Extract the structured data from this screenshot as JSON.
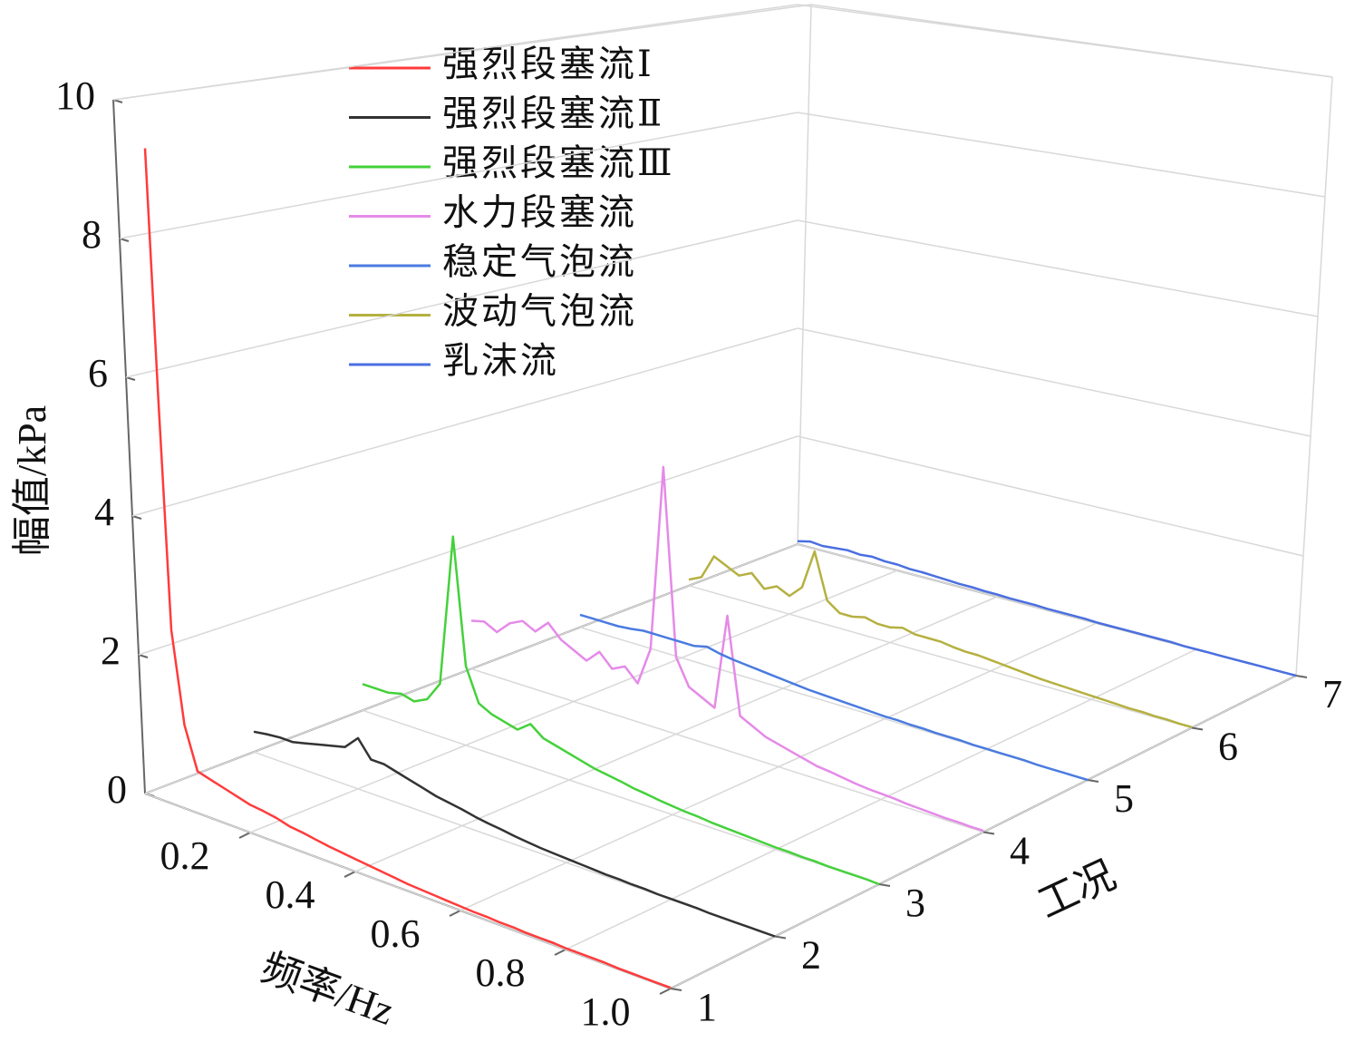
{
  "chart_data": {
    "type": "waterfall3d",
    "ylabel": "幅值/kPa",
    "xlabel": "频率/Hz",
    "zlabel": "工况",
    "ylim": [
      0,
      10
    ],
    "yticks": [
      0,
      2,
      4,
      6,
      8,
      10
    ],
    "xlim": [
      0,
      1
    ],
    "xticks": [
      0.2,
      0.4,
      0.6,
      0.8,
      {
        "value": 1,
        "label": "1.0"
      }
    ],
    "zticks": [
      1,
      2,
      3,
      4,
      5,
      6,
      7
    ],
    "grid": true,
    "x": [
      0,
      0.025,
      0.05,
      0.075,
      0.1,
      0.125,
      0.15,
      0.175,
      0.2,
      0.225,
      0.25,
      0.275,
      0.3,
      0.325,
      0.35,
      0.375,
      0.4,
      0.425,
      0.45,
      0.475,
      0.5,
      0.525,
      0.55,
      0.575,
      0.6,
      0.625,
      0.65,
      0.675,
      0.7,
      0.725,
      0.75,
      0.775,
      0.8,
      0.825,
      0.85,
      0.875,
      0.9,
      0.925,
      0.95,
      0.975,
      1
    ],
    "series": [
      {
        "name": "强烈段塞流Ⅰ",
        "color": "#ff3b3b",
        "values": [
          9.3,
          5.8,
          2.5,
          1.2,
          0.6,
          0.55,
          0.5,
          0.45,
          0.4,
          0.38,
          0.35,
          0.3,
          0.28,
          0.25,
          0.22,
          0.2,
          0.18,
          0.16,
          0.14,
          0.12,
          0.1,
          0.09,
          0.08,
          0.07,
          0.06,
          0.05,
          0.05,
          0.04,
          0.04,
          0.03,
          0.03,
          0.03,
          0.02,
          0.02,
          0.02,
          0.02,
          0.01,
          0.01,
          0.01,
          0.01,
          0.01
        ]
      },
      {
        "name": "强烈段塞流Ⅱ",
        "color": "#333333",
        "values": [
          0.3,
          0.33,
          0.35,
          0.35,
          0.4,
          0.45,
          0.5,
          0.55,
          0.75,
          0.5,
          0.5,
          0.45,
          0.4,
          0.35,
          0.3,
          0.27,
          0.24,
          0.2,
          0.17,
          0.15,
          0.12,
          0.1,
          0.08,
          0.07,
          0.06,
          0.05,
          0.04,
          0.03,
          0.03,
          0.02,
          0.02,
          0.01,
          0.01,
          0.01,
          0.01,
          0,
          0,
          0,
          0,
          0,
          0
        ]
      },
      {
        "name": "强烈段塞流Ⅲ",
        "color": "#44d13a",
        "values": [
          0.4,
          0.4,
          0.4,
          0.45,
          0.4,
          0.5,
          0.8,
          3.1,
          1.2,
          0.7,
          0.6,
          0.55,
          0.5,
          0.65,
          0.5,
          0.45,
          0.4,
          0.35,
          0.3,
          0.27,
          0.24,
          0.2,
          0.18,
          0.15,
          0.13,
          0.11,
          0.1,
          0.08,
          0.07,
          0.06,
          0.05,
          0.04,
          0.03,
          0.03,
          0.02,
          0.02,
          0.01,
          0.01,
          0.01,
          0.01,
          0
        ]
      },
      {
        "name": "水力段塞流",
        "color": "#e58ae8",
        "values": [
          0.75,
          0.8,
          0.7,
          0.9,
          1.0,
          0.9,
          1.1,
          0.9,
          0.8,
          0.7,
          0.9,
          0.7,
          0.8,
          0.6,
          1.2,
          4.1,
          1.2,
          0.8,
          0.7,
          0.6,
          2.1,
          0.6,
          0.5,
          0.4,
          0.35,
          0.3,
          0.25,
          0.2,
          0.18,
          0.15,
          0.12,
          0.1,
          0.09,
          0.08,
          0.06,
          0.05,
          0.04,
          0.03,
          0.03,
          0.02,
          0.02
        ]
      },
      {
        "name": "稳定气泡流",
        "color": "#4a7be0",
        "values": [
          0.2,
          0.2,
          0.2,
          0.2,
          0.22,
          0.25,
          0.25,
          0.25,
          0.25,
          0.25,
          0.3,
          0.25,
          0.22,
          0.2,
          0.18,
          0.16,
          0.14,
          0.12,
          0.1,
          0.09,
          0.08,
          0.07,
          0.06,
          0.05,
          0.04,
          0.04,
          0.03,
          0.03,
          0.02,
          0.02,
          0.02,
          0.01,
          0.01,
          0.01,
          0.01,
          0.01,
          0,
          0,
          0,
          0,
          0
        ]
      },
      {
        "name": "波动气泡流",
        "color": "#b5b040",
        "values": [
          0.1,
          0.2,
          0.6,
          0.5,
          0.4,
          0.5,
          0.3,
          0.4,
          0.3,
          0.5,
          1.15,
          0.4,
          0.25,
          0.25,
          0.3,
          0.25,
          0.25,
          0.3,
          0.25,
          0.25,
          0.25,
          0.22,
          0.2,
          0.2,
          0.18,
          0.16,
          0.14,
          0.12,
          0.1,
          0.09,
          0.08,
          0.07,
          0.06,
          0.05,
          0.04,
          0.03,
          0.03,
          0.02,
          0.02,
          0.01,
          0.01
        ]
      },
      {
        "name": "乳沫流",
        "color": "#4a6fe0",
        "values": [
          0.05,
          0.1,
          0.08,
          0.1,
          0.12,
          0.1,
          0.12,
          0.1,
          0.1,
          0.08,
          0.08,
          0.07,
          0.06,
          0.05,
          0.05,
          0.04,
          0.04,
          0.03,
          0.03,
          0.03,
          0.02,
          0.02,
          0.02,
          0.02,
          0.01,
          0.01,
          0.01,
          0.01,
          0.01,
          0.01,
          0.01,
          0,
          0,
          0,
          0,
          0,
          0,
          0,
          0,
          0,
          0
        ]
      }
    ]
  }
}
